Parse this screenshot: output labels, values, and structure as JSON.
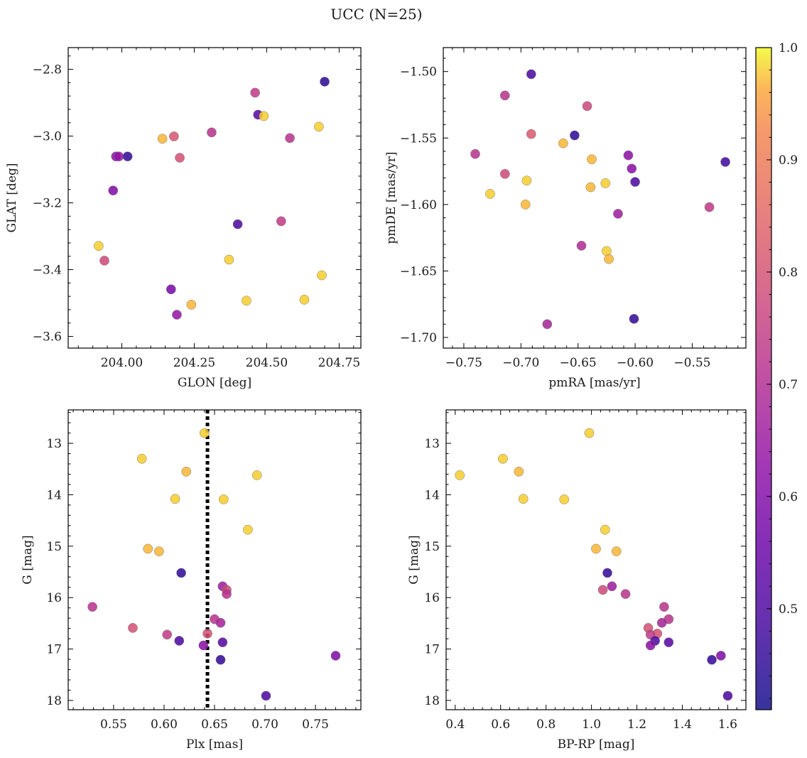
{
  "figure": {
    "title": "UCC (N=25)"
  },
  "colorbar": {
    "range": [
      0.41,
      1.0
    ],
    "ticks": [
      "0.5",
      "0.6",
      "0.7",
      "0.8",
      "0.9",
      "1.0"
    ],
    "tick_values": [
      0.5,
      0.6,
      0.7,
      0.8,
      0.9,
      1.0
    ],
    "colormap": "plasma"
  },
  "chart_data": [
    {
      "type": "scatter",
      "xlabel": "GLON [deg]",
      "ylabel": "GLAT [deg]",
      "xlim": [
        203.815,
        204.825
      ],
      "ylim": [
        -3.635,
        -2.735
      ],
      "y_inverted": false,
      "xticks": [
        204.0,
        204.25,
        204.5,
        204.75
      ],
      "xtick_labels": [
        "204.00",
        "204.25",
        "204.50",
        "204.75"
      ],
      "yticks": [
        -3.6,
        -3.4,
        -3.2,
        -3.0,
        -2.8
      ],
      "ytick_labels": [
        "−3.6",
        "−3.4",
        "−3.2",
        "−3.0",
        "−2.8"
      ],
      "points": [
        {
          "x": 204.7,
          "y": -2.837,
          "c": 0.45
        },
        {
          "x": 204.46,
          "y": -2.87,
          "c": 0.74
        },
        {
          "x": 204.47,
          "y": -2.936,
          "c": 0.52
        },
        {
          "x": 204.49,
          "y": -2.94,
          "c": 0.98
        },
        {
          "x": 204.68,
          "y": -2.972,
          "c": 0.98
        },
        {
          "x": 204.31,
          "y": -2.989,
          "c": 0.72
        },
        {
          "x": 204.18,
          "y": -3.001,
          "c": 0.81
        },
        {
          "x": 204.14,
          "y": -3.008,
          "c": 0.97
        },
        {
          "x": 204.58,
          "y": -3.006,
          "c": 0.72
        },
        {
          "x": 204.2,
          "y": -3.065,
          "c": 0.8
        },
        {
          "x": 203.98,
          "y": -3.061,
          "c": 0.62
        },
        {
          "x": 203.99,
          "y": -3.061,
          "c": 0.64
        },
        {
          "x": 204.02,
          "y": -3.061,
          "c": 0.46
        },
        {
          "x": 203.97,
          "y": -3.163,
          "c": 0.6
        },
        {
          "x": 204.4,
          "y": -3.264,
          "c": 0.5
        },
        {
          "x": 204.55,
          "y": -3.255,
          "c": 0.74
        },
        {
          "x": 203.92,
          "y": -3.329,
          "c": 0.98
        },
        {
          "x": 203.94,
          "y": -3.373,
          "c": 0.78
        },
        {
          "x": 204.37,
          "y": -3.37,
          "c": 0.98
        },
        {
          "x": 204.69,
          "y": -3.417,
          "c": 0.98
        },
        {
          "x": 204.17,
          "y": -3.459,
          "c": 0.58
        },
        {
          "x": 204.43,
          "y": -3.493,
          "c": 0.98
        },
        {
          "x": 204.63,
          "y": -3.49,
          "c": 0.98
        },
        {
          "x": 204.24,
          "y": -3.505,
          "c": 0.97
        },
        {
          "x": 204.19,
          "y": -3.535,
          "c": 0.64
        }
      ]
    },
    {
      "type": "scatter",
      "xlabel": "pmRA [mas/yr]",
      "ylabel": "pmDE [mas/yr]",
      "xlim": [
        -0.768,
        -0.503
      ],
      "ylim": [
        -1.708,
        -1.482
      ],
      "y_inverted": false,
      "xticks": [
        -0.75,
        -0.7,
        -0.65,
        -0.6,
        -0.55
      ],
      "xtick_labels": [
        "−0.75",
        "−0.70",
        "−0.65",
        "−0.60",
        "−0.55"
      ],
      "yticks": [
        -1.7,
        -1.65,
        -1.6,
        -1.55,
        -1.5
      ],
      "ytick_labels": [
        "−1.70",
        "−1.65",
        "−1.60",
        "−1.55",
        "−1.50"
      ],
      "points": [
        {
          "x": -0.691,
          "y": -1.502,
          "c": 0.5
        },
        {
          "x": -0.714,
          "y": -1.518,
          "c": 0.72
        },
        {
          "x": -0.642,
          "y": -1.526,
          "c": 0.78
        },
        {
          "x": -0.691,
          "y": -1.547,
          "c": 0.82
        },
        {
          "x": -0.653,
          "y": -1.548,
          "c": 0.45
        },
        {
          "x": -0.663,
          "y": -1.554,
          "c": 0.97
        },
        {
          "x": -0.74,
          "y": -1.562,
          "c": 0.72
        },
        {
          "x": -0.606,
          "y": -1.563,
          "c": 0.62
        },
        {
          "x": -0.638,
          "y": -1.566,
          "c": 0.97
        },
        {
          "x": -0.521,
          "y": -1.568,
          "c": 0.48
        },
        {
          "x": -0.603,
          "y": -1.573,
          "c": 0.62
        },
        {
          "x": -0.714,
          "y": -1.577,
          "c": 0.78
        },
        {
          "x": -0.695,
          "y": -1.582,
          "c": 0.98
        },
        {
          "x": -0.6,
          "y": -1.583,
          "c": 0.5
        },
        {
          "x": -0.626,
          "y": -1.584,
          "c": 0.98
        },
        {
          "x": -0.639,
          "y": -1.587,
          "c": 0.97
        },
        {
          "x": -0.727,
          "y": -1.592,
          "c": 0.98
        },
        {
          "x": -0.696,
          "y": -1.6,
          "c": 0.97
        },
        {
          "x": -0.535,
          "y": -1.602,
          "c": 0.74
        },
        {
          "x": -0.615,
          "y": -1.607,
          "c": 0.66
        },
        {
          "x": -0.647,
          "y": -1.631,
          "c": 0.7
        },
        {
          "x": -0.625,
          "y": -1.635,
          "c": 0.98
        },
        {
          "x": -0.623,
          "y": -1.641,
          "c": 0.97
        },
        {
          "x": -0.601,
          "y": -1.686,
          "c": 0.46
        },
        {
          "x": -0.677,
          "y": -1.69,
          "c": 0.68
        }
      ]
    },
    {
      "type": "scatter",
      "xlabel": "Plx [mas]",
      "ylabel": "G [mag]",
      "xlim": [
        0.505,
        0.795
      ],
      "ylim": [
        12.35,
        18.18
      ],
      "y_inverted": true,
      "vline": {
        "x": 0.643,
        "style": "dotted"
      },
      "xticks": [
        0.55,
        0.6,
        0.65,
        0.7,
        0.75
      ],
      "xtick_labels": [
        "0.55",
        "0.60",
        "0.65",
        "0.70",
        "0.75"
      ],
      "yticks": [
        13,
        14,
        15,
        16,
        17,
        18
      ],
      "ytick_labels": [
        "13",
        "14",
        "15",
        "16",
        "17",
        "18"
      ],
      "points": [
        {
          "x": 0.64,
          "y": 12.8,
          "c": 0.98
        },
        {
          "x": 0.578,
          "y": 13.3,
          "c": 0.98
        },
        {
          "x": 0.622,
          "y": 13.55,
          "c": 0.97
        },
        {
          "x": 0.692,
          "y": 13.62,
          "c": 0.98
        },
        {
          "x": 0.611,
          "y": 14.08,
          "c": 0.98
        },
        {
          "x": 0.659,
          "y": 14.09,
          "c": 0.98
        },
        {
          "x": 0.683,
          "y": 14.68,
          "c": 0.98
        },
        {
          "x": 0.584,
          "y": 15.05,
          "c": 0.97
        },
        {
          "x": 0.595,
          "y": 15.1,
          "c": 0.97
        },
        {
          "x": 0.617,
          "y": 15.52,
          "c": 0.46
        },
        {
          "x": 0.658,
          "y": 15.78,
          "c": 0.66
        },
        {
          "x": 0.662,
          "y": 15.85,
          "c": 0.78
        },
        {
          "x": 0.662,
          "y": 15.93,
          "c": 0.72
        },
        {
          "x": 0.529,
          "y": 16.18,
          "c": 0.72
        },
        {
          "x": 0.65,
          "y": 16.42,
          "c": 0.72
        },
        {
          "x": 0.656,
          "y": 16.49,
          "c": 0.68
        },
        {
          "x": 0.569,
          "y": 16.59,
          "c": 0.8
        },
        {
          "x": 0.643,
          "y": 16.7,
          "c": 0.8
        },
        {
          "x": 0.603,
          "y": 16.72,
          "c": 0.74
        },
        {
          "x": 0.615,
          "y": 16.84,
          "c": 0.5
        },
        {
          "x": 0.658,
          "y": 16.87,
          "c": 0.52
        },
        {
          "x": 0.639,
          "y": 16.93,
          "c": 0.62
        },
        {
          "x": 0.77,
          "y": 17.13,
          "c": 0.6
        },
        {
          "x": 0.656,
          "y": 17.21,
          "c": 0.46
        },
        {
          "x": 0.701,
          "y": 17.91,
          "c": 0.5
        }
      ]
    },
    {
      "type": "scatter",
      "xlabel": "BP-RP [mag]",
      "ylabel": "G [mag]",
      "xlim": [
        0.36,
        1.68
      ],
      "ylim": [
        12.35,
        18.18
      ],
      "y_inverted": true,
      "xticks": [
        0.4,
        0.6,
        0.8,
        1.0,
        1.2,
        1.4,
        1.6
      ],
      "xtick_labels": [
        "0.4",
        "0.6",
        "0.8",
        "1.0",
        "1.2",
        "1.4",
        "1.6"
      ],
      "yticks": [
        13,
        14,
        15,
        16,
        17,
        18
      ],
      "ytick_labels": [
        "13",
        "14",
        "15",
        "16",
        "17",
        "18"
      ],
      "points": [
        {
          "x": 0.99,
          "y": 12.8,
          "c": 0.98
        },
        {
          "x": 0.61,
          "y": 13.3,
          "c": 0.98
        },
        {
          "x": 0.68,
          "y": 13.55,
          "c": 0.97
        },
        {
          "x": 0.42,
          "y": 13.62,
          "c": 0.98
        },
        {
          "x": 0.7,
          "y": 14.08,
          "c": 0.98
        },
        {
          "x": 0.88,
          "y": 14.09,
          "c": 0.98
        },
        {
          "x": 1.06,
          "y": 14.68,
          "c": 0.98
        },
        {
          "x": 1.02,
          "y": 15.05,
          "c": 0.97
        },
        {
          "x": 1.11,
          "y": 15.1,
          "c": 0.97
        },
        {
          "x": 1.07,
          "y": 15.52,
          "c": 0.46
        },
        {
          "x": 1.09,
          "y": 15.78,
          "c": 0.66
        },
        {
          "x": 1.05,
          "y": 15.85,
          "c": 0.78
        },
        {
          "x": 1.15,
          "y": 15.93,
          "c": 0.72
        },
        {
          "x": 1.32,
          "y": 16.18,
          "c": 0.72
        },
        {
          "x": 1.34,
          "y": 16.42,
          "c": 0.72
        },
        {
          "x": 1.31,
          "y": 16.49,
          "c": 0.68
        },
        {
          "x": 1.25,
          "y": 16.59,
          "c": 0.8
        },
        {
          "x": 1.29,
          "y": 16.7,
          "c": 0.8
        },
        {
          "x": 1.26,
          "y": 16.72,
          "c": 0.74
        },
        {
          "x": 1.28,
          "y": 16.84,
          "c": 0.5
        },
        {
          "x": 1.34,
          "y": 16.87,
          "c": 0.52
        },
        {
          "x": 1.26,
          "y": 16.93,
          "c": 0.62
        },
        {
          "x": 1.57,
          "y": 17.13,
          "c": 0.6
        },
        {
          "x": 1.53,
          "y": 17.21,
          "c": 0.46
        },
        {
          "x": 1.6,
          "y": 17.91,
          "c": 0.5
        }
      ]
    }
  ]
}
